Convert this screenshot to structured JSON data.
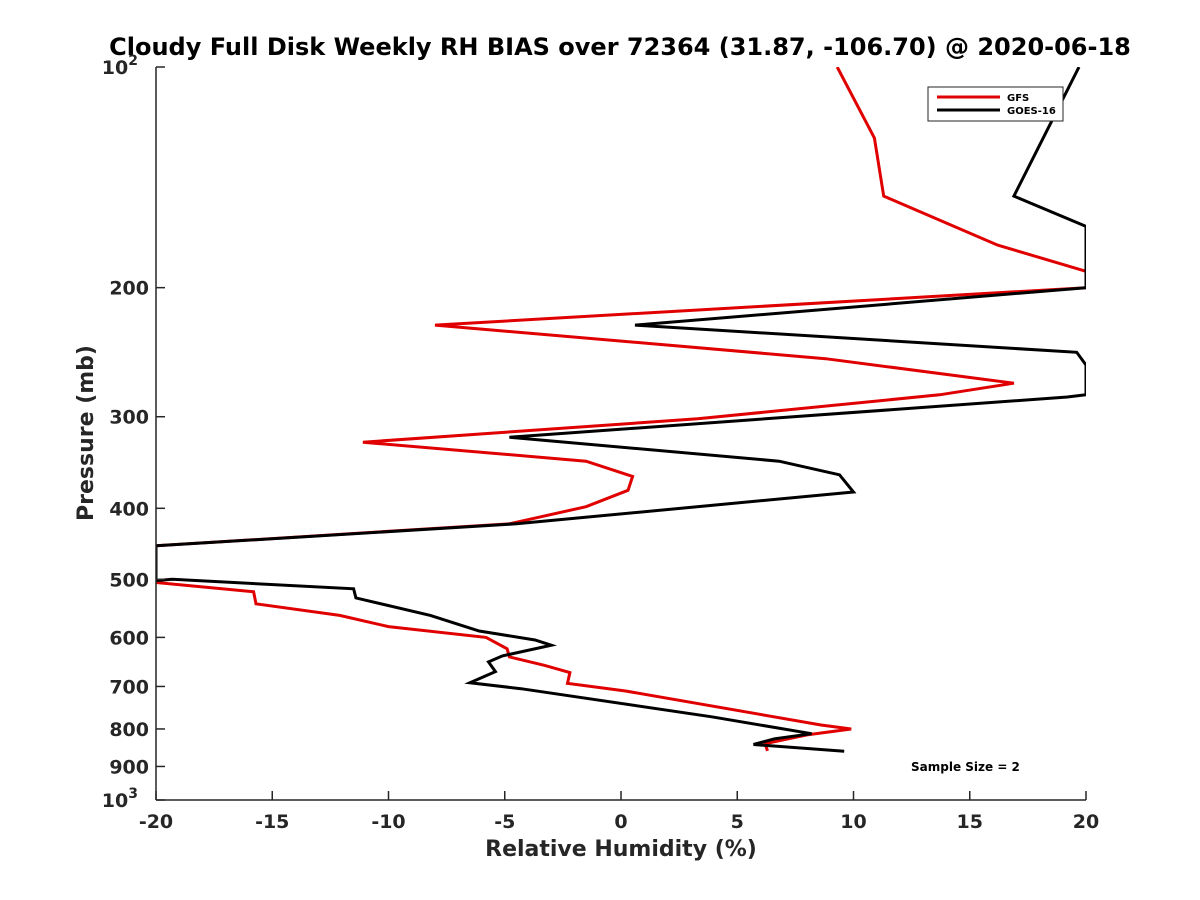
{
  "chart_data": {
    "type": "line",
    "title": "Cloudy Full Disk Weekly RH BIAS over 72364 (31.87, -106.70) @ 2020-06-18",
    "xlabel": "Relative Humidity (%)",
    "ylabel": "Pressure (mb)",
    "xlim": [
      -20,
      20
    ],
    "ylim": [
      100,
      1000
    ],
    "yscale": "log",
    "y_reversed": true,
    "grid": false,
    "legend_position": "top-right",
    "x_ticks": [
      "-20",
      "-15",
      "-10",
      "-5",
      "0",
      "5",
      "10",
      "15",
      "20"
    ],
    "y_ticks": [
      {
        "value": 100,
        "base": "10",
        "exp": "2"
      },
      {
        "value": 200,
        "label": "200"
      },
      {
        "value": 300,
        "label": "300"
      },
      {
        "value": 400,
        "label": "400"
      },
      {
        "value": 500,
        "label": "500"
      },
      {
        "value": 600,
        "label": "600"
      },
      {
        "value": 700,
        "label": "700"
      },
      {
        "value": 800,
        "label": "800"
      },
      {
        "value": 900,
        "label": "900"
      },
      {
        "value": 1000,
        "base": "10",
        "exp": "3"
      }
    ],
    "annotation": "Sample Size = 2",
    "series": [
      {
        "name": "GFS",
        "color": "#e00000",
        "points": [
          [
            9.3,
            100
          ],
          [
            10.9,
            125
          ],
          [
            11.3,
            150
          ],
          [
            16.2,
            175
          ],
          [
            20,
            190
          ],
          [
            20,
            200
          ],
          [
            -8.0,
            225
          ],
          [
            8.8,
            250
          ],
          [
            16.9,
            270
          ],
          [
            13.7,
            280
          ],
          [
            3.3,
            302
          ],
          [
            -11.1,
            325
          ],
          [
            -1.5,
            345
          ],
          [
            0.5,
            362
          ],
          [
            0.3,
            378
          ],
          [
            -1.5,
            398
          ],
          [
            -4.8,
            420
          ],
          [
            -20,
            450
          ],
          [
            -20,
            505
          ],
          [
            -15.8,
            520
          ],
          [
            -15.7,
            540
          ],
          [
            -12.1,
            560
          ],
          [
            -10.0,
            580
          ],
          [
            -5.8,
            600
          ],
          [
            -4.9,
            622
          ],
          [
            -4.8,
            638
          ],
          [
            -3.3,
            655
          ],
          [
            -2.2,
            670
          ],
          [
            -2.3,
            693
          ],
          [
            0.2,
            710
          ],
          [
            8.6,
            790
          ],
          [
            9.9,
            800
          ],
          [
            8.0,
            815
          ],
          [
            6.2,
            838
          ],
          [
            6.3,
            857
          ]
        ]
      },
      {
        "name": "GOES-16",
        "color": "#000000",
        "points": [
          [
            19.7,
            100
          ],
          [
            16.9,
            150
          ],
          [
            20,
            165
          ],
          [
            20,
            200
          ],
          [
            0.6,
            225
          ],
          [
            19.6,
            245
          ],
          [
            20,
            255
          ],
          [
            20,
            280
          ],
          [
            19.2,
            282
          ],
          [
            -4.8,
            320
          ],
          [
            6.8,
            345
          ],
          [
            9.4,
            360
          ],
          [
            10.0,
            380
          ],
          [
            -4.5,
            420
          ],
          [
            -20,
            450
          ],
          [
            -20,
            502
          ],
          [
            -19.3,
            500
          ],
          [
            -11.5,
            515
          ],
          [
            -11.4,
            530
          ],
          [
            -8.2,
            560
          ],
          [
            -6.1,
            588
          ],
          [
            -3.7,
            605
          ],
          [
            -3.0,
            615
          ],
          [
            -5.1,
            636
          ],
          [
            -5.7,
            648
          ],
          [
            -5.4,
            668
          ],
          [
            -6.5,
            692
          ],
          [
            -4.3,
            705
          ],
          [
            3.9,
            770
          ],
          [
            8.2,
            812
          ],
          [
            6.6,
            825
          ],
          [
            5.7,
            840
          ],
          [
            9.6,
            858
          ]
        ]
      }
    ]
  }
}
